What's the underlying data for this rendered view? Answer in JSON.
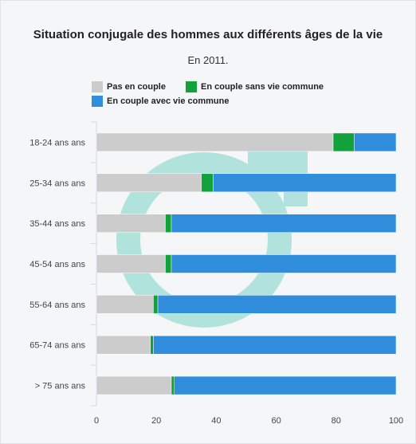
{
  "chart_data": {
    "type": "bar",
    "orientation": "horizontal",
    "stacked": true,
    "title": "Situation conjugale des hommes aux différents âges de la vie",
    "subtitle": "En 2011.",
    "categories": [
      "18-24 ans ans",
      "25-34 ans ans",
      "35-44 ans ans",
      "45-54 ans ans",
      "55-64 ans ans",
      "65-74 ans ans",
      "> 75 ans ans"
    ],
    "series": [
      {
        "name": "Pas en couple",
        "color": "#cccccc",
        "values": [
          79,
          35,
          23,
          23,
          19,
          18,
          25
        ]
      },
      {
        "name": "En couple sans vie commune",
        "color": "#11a23c",
        "values": [
          7,
          4,
          2,
          2,
          1.5,
          1,
          1
        ]
      },
      {
        "name": "En couple avec vie commune",
        "color": "#2f8ddc",
        "values": [
          14,
          61,
          75,
          75,
          79.5,
          81,
          74
        ]
      }
    ],
    "xlim": [
      0,
      100
    ],
    "xticks": [
      "0",
      "20",
      "40",
      "60",
      "80",
      "100"
    ],
    "xlabel": "",
    "ylabel": "",
    "legend_position": "top-left",
    "grid": false
  }
}
